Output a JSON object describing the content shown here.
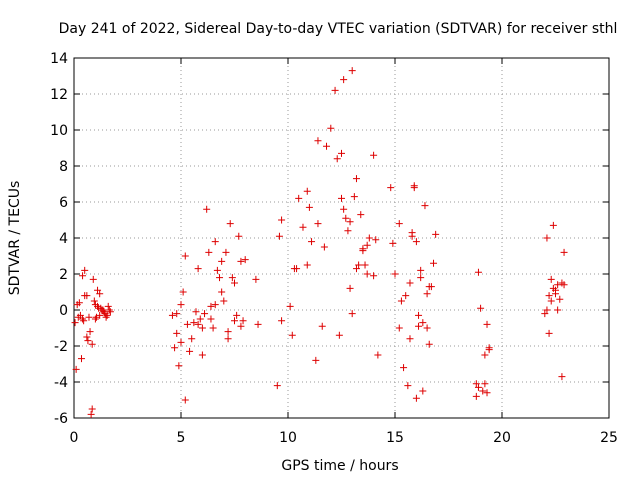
{
  "chart_data": {
    "type": "scatter",
    "title": "Day 241 of 2022, Sidereal Day-to-day VTEC variation (SDTVAR) for receiver sthl",
    "xlabel": "GPS time / hours",
    "ylabel": "SDTVAR / TECUs",
    "xlim": [
      0,
      25
    ],
    "ylim": [
      -6,
      14
    ],
    "xticks": [
      0,
      5,
      10,
      15,
      20,
      25
    ],
    "yticks": [
      -6,
      -4,
      -2,
      0,
      2,
      4,
      6,
      8,
      10,
      12,
      14
    ],
    "xtick_labels": [
      "0",
      "5",
      "10",
      "15",
      "20",
      "25"
    ],
    "ytick_labels": [
      "-6",
      "-4",
      "-2",
      "0",
      "2",
      "4",
      "6",
      "8",
      "10",
      "12",
      "14"
    ],
    "grid": true,
    "marker": "+",
    "color": "#dd0000",
    "series": [
      {
        "name": "SDTVAR",
        "x": [
          0.05,
          0.1,
          0.15,
          0.2,
          0.25,
          0.3,
          0.35,
          0.4,
          0.45,
          0.5,
          0.6,
          0.65,
          0.7,
          0.75,
          0.85,
          0.9,
          0.95,
          1.0,
          1.05,
          1.1,
          1.15,
          1.2,
          1.25,
          1.3,
          1.35,
          1.4,
          1.45,
          1.5,
          1.55,
          1.6,
          1.65,
          1.7,
          0.8,
          0.85,
          0.6,
          0.5,
          1.1,
          1.2,
          0.4,
          1.0,
          4.6,
          4.7,
          4.8,
          4.9,
          5.0,
          5.1,
          5.2,
          5.3,
          5.4,
          5.5,
          5.6,
          5.7,
          5.8,
          5.9,
          6.0,
          6.1,
          6.2,
          6.3,
          6.4,
          6.5,
          6.6,
          6.7,
          6.8,
          6.9,
          7.0,
          7.1,
          7.2,
          7.3,
          7.4,
          7.5,
          7.6,
          7.7,
          7.8,
          7.9,
          8.0,
          8.5,
          8.6,
          9.5,
          9.6,
          9.7,
          4.8,
          5.0,
          5.2,
          5.8,
          6.0,
          6.4,
          6.6,
          6.9,
          7.2,
          7.5,
          7.8,
          9.7,
          10.2,
          10.3,
          10.5,
          10.7,
          10.9,
          11.0,
          11.1,
          11.3,
          11.4,
          11.6,
          11.8,
          12.0,
          12.2,
          12.3,
          12.5,
          12.6,
          12.7,
          12.8,
          12.9,
          13.0,
          13.1,
          13.2,
          13.3,
          13.4,
          13.5,
          13.6,
          13.7,
          13.8,
          14.0,
          14.1,
          14.2,
          12.4,
          12.5,
          12.6,
          12.9,
          13.0,
          13.2,
          13.5,
          13.7,
          14.0,
          10.1,
          10.4,
          10.9,
          11.4,
          11.7,
          14.8,
          14.9,
          15.0,
          15.2,
          15.3,
          15.4,
          15.5,
          15.6,
          15.7,
          15.8,
          15.9,
          16.0,
          16.1,
          16.2,
          16.3,
          16.4,
          16.5,
          16.6,
          16.7,
          16.8,
          16.9,
          15.7,
          15.9,
          16.1,
          16.3,
          16.5,
          15.2,
          15.8,
          16.2,
          16.6,
          16.0,
          18.8,
          18.9,
          19.0,
          19.1,
          19.2,
          19.3,
          19.4,
          18.8,
          19.3,
          19.4,
          18.9,
          19.2,
          22.0,
          22.1,
          22.2,
          22.3,
          22.4,
          22.5,
          22.6,
          22.7,
          22.8,
          22.9,
          22.1,
          22.4,
          22.5,
          22.8,
          22.9,
          22.6,
          22.3,
          22.2
        ],
        "y": [
          -0.7,
          -3.3,
          0.3,
          -0.4,
          0.4,
          -0.3,
          -2.7,
          -0.5,
          -0.6,
          2.2,
          -1.5,
          -1.7,
          -0.4,
          -1.2,
          -1.9,
          1.7,
          0.5,
          0.3,
          -0.4,
          0.2,
          0.1,
          -0.3,
          0.1,
          0.0,
          0.0,
          -0.1,
          -0.2,
          -0.4,
          -0.3,
          0.2,
          0.0,
          -0.1,
          -5.8,
          -5.5,
          0.8,
          0.8,
          1.1,
          0.9,
          1.9,
          -0.5,
          -0.3,
          -2.1,
          -0.2,
          -3.1,
          0.3,
          1.0,
          3.0,
          -0.8,
          -2.3,
          -1.6,
          -0.7,
          -0.1,
          -0.8,
          -0.5,
          -2.5,
          -0.2,
          5.6,
          3.2,
          0.2,
          -1.0,
          0.3,
          2.2,
          1.8,
          1.0,
          0.5,
          3.2,
          -1.6,
          4.8,
          1.8,
          1.5,
          -0.3,
          4.1,
          -0.9,
          -0.6,
          2.8,
          1.7,
          -0.8,
          -4.2,
          4.1,
          -0.6,
          -1.3,
          -1.8,
          -5.0,
          2.3,
          -1.0,
          -0.5,
          3.8,
          2.7,
          -1.2,
          -0.6,
          2.7,
          5.0,
          -1.4,
          2.3,
          6.2,
          4.6,
          6.6,
          5.7,
          3.8,
          -2.8,
          9.4,
          -0.9,
          9.1,
          10.1,
          12.2,
          8.4,
          6.2,
          5.6,
          5.1,
          4.4,
          4.9,
          13.3,
          6.3,
          7.3,
          2.5,
          5.3,
          3.4,
          2.5,
          2.0,
          4.0,
          8.6,
          3.9,
          -2.5,
          -1.4,
          8.7,
          12.8,
          1.2,
          -0.2,
          2.3,
          3.3,
          3.6,
          1.9,
          0.2,
          2.3,
          2.5,
          4.8,
          3.5,
          6.8,
          3.7,
          2.0,
          4.8,
          0.5,
          -3.2,
          0.8,
          -4.2,
          -1.6,
          4.3,
          6.9,
          3.8,
          -0.9,
          1.8,
          -4.5,
          5.8,
          0.9,
          -1.9,
          1.3,
          2.6,
          4.2,
          1.5,
          6.8,
          -0.3,
          -0.7,
          -1.0,
          -1.0,
          4.1,
          2.2,
          1.3,
          -4.9,
          -4.1,
          2.1,
          0.1,
          -4.5,
          -2.5,
          -0.8,
          -2.1,
          -4.8,
          -4.6,
          -2.2,
          -4.3,
          -4.1,
          -0.2,
          0.0,
          0.8,
          0.5,
          4.7,
          0.9,
          1.4,
          0.6,
          1.5,
          3.2,
          4.0,
          1.2,
          1.1,
          -3.7,
          1.4,
          0.0,
          1.7,
          -1.3
        ]
      }
    ]
  }
}
